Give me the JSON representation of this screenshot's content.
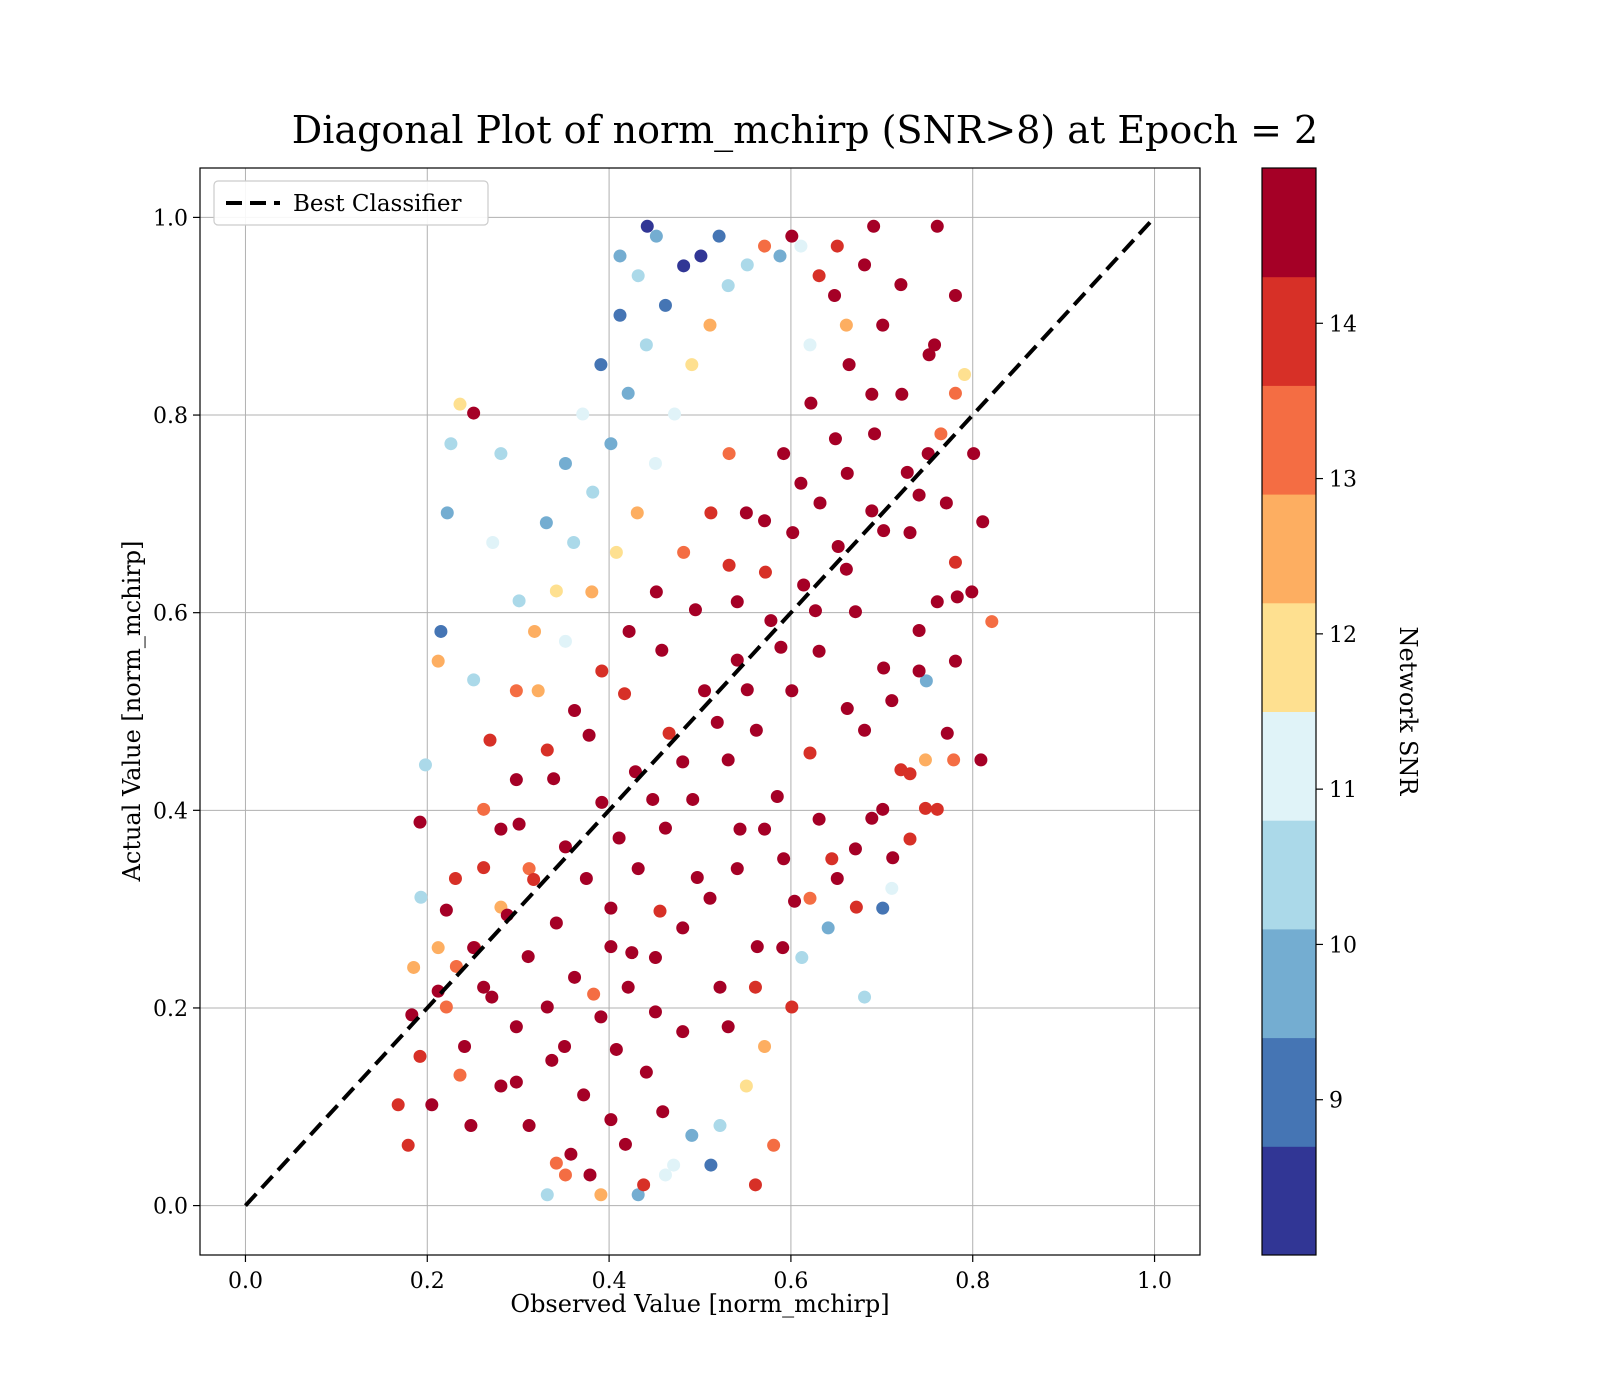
{
  "chart_data": {
    "type": "scatter",
    "title": "Diagonal Plot of norm_mchirp (SNR>8) at Epoch = 2",
    "xlabel": "Observed Value [norm_mchirp]",
    "ylabel": "Actual Value [norm_mchirp]",
    "xlim": [
      -0.05,
      1.05
    ],
    "ylim": [
      -0.05,
      1.05
    ],
    "x_ticks": [
      "0.0",
      "0.2",
      "0.4",
      "0.6",
      "0.8",
      "1.0"
    ],
    "y_ticks": [
      "0.0",
      "0.2",
      "0.4",
      "0.6",
      "0.8",
      "1.0"
    ],
    "grid": true,
    "legend": {
      "placement": "upper-left",
      "entries": [
        {
          "label": "Best Classifier",
          "style": "dashed",
          "color": "#000000"
        }
      ]
    },
    "reference_line": {
      "x": [
        0.0,
        1.0
      ],
      "y": [
        0.0,
        1.0
      ]
    },
    "colorbar": {
      "label": "Network SNR",
      "range": [
        8,
        15
      ],
      "tick_values": [
        9,
        10,
        11,
        12,
        13,
        14
      ],
      "tick_labels": [
        "9",
        "10",
        "11",
        "12",
        "13",
        "14"
      ],
      "colors": [
        "#313695",
        "#4575b4",
        "#74add1",
        "#abd9e9",
        "#e0f3f8",
        "#fee090",
        "#fdae61",
        "#f46d43",
        "#d73027",
        "#a50026"
      ]
    },
    "points": [
      [
        0.183,
        0.193,
        14.77
      ],
      [
        0.212,
        0.217,
        14.63
      ],
      [
        0.251,
        0.261,
        14.83
      ],
      [
        0.288,
        0.294,
        14.93
      ],
      [
        0.317,
        0.33,
        13.73
      ],
      [
        0.352,
        0.363,
        14.54
      ],
      [
        0.392,
        0.408,
        14.69
      ],
      [
        0.429,
        0.439,
        14.91
      ],
      [
        0.466,
        0.478,
        13.66
      ],
      [
        0.505,
        0.521,
        14.76
      ],
      [
        0.541,
        0.552,
        14.54
      ],
      [
        0.578,
        0.592,
        14.86
      ],
      [
        0.614,
        0.628,
        14.58
      ],
      [
        0.652,
        0.667,
        14.98
      ],
      [
        0.689,
        0.703,
        14.82
      ],
      [
        0.728,
        0.742,
        14.41
      ],
      [
        0.765,
        0.781,
        13.51
      ],
      [
        0.248,
        0.081,
        14.81
      ],
      [
        0.298,
        0.125,
        14.63
      ],
      [
        0.337,
        0.147,
        14.34
      ],
      [
        0.383,
        0.214,
        13.23
      ],
      [
        0.425,
        0.256,
        14.98
      ],
      [
        0.456,
        0.298,
        13.64
      ],
      [
        0.497,
        0.332,
        14.61
      ],
      [
        0.544,
        0.381,
        14.87
      ],
      [
        0.585,
        0.414,
        14.71
      ],
      [
        0.621,
        0.458,
        14.19
      ],
      [
        0.662,
        0.503,
        14.58
      ],
      [
        0.702,
        0.544,
        14.84
      ],
      [
        0.741,
        0.582,
        14.65
      ],
      [
        0.783,
        0.616,
        14.93
      ],
      [
        0.221,
        0.299,
        14.76
      ],
      [
        0.262,
        0.342,
        14.12
      ],
      [
        0.301,
        0.386,
        14.59
      ],
      [
        0.339,
        0.432,
        14.43
      ],
      [
        0.378,
        0.476,
        14.37
      ],
      [
        0.417,
        0.518,
        13.91
      ],
      [
        0.458,
        0.562,
        14.97
      ],
      [
        0.495,
        0.603,
        14.88
      ],
      [
        0.532,
        0.648,
        14.26
      ],
      [
        0.571,
        0.693,
        14.61
      ],
      [
        0.611,
        0.731,
        14.74
      ],
      [
        0.649,
        0.776,
        14.93
      ],
      [
        0.689,
        0.821,
        14.79
      ],
      [
        0.358,
        0.052,
        14.71
      ],
      [
        0.402,
        0.087,
        14.82
      ],
      [
        0.441,
        0.135,
        14.41
      ],
      [
        0.481,
        0.176,
        14.96
      ],
      [
        0.522,
        0.221,
        14.63
      ],
      [
        0.563,
        0.262,
        14.54
      ],
      [
        0.604,
        0.308,
        14.88
      ],
      [
        0.645,
        0.351,
        14.19
      ],
      [
        0.689,
        0.392,
        14.77
      ],
      [
        0.731,
        0.437,
        13.61
      ],
      [
        0.772,
        0.478,
        14.35
      ],
      [
        0.192,
        0.151,
        13.94
      ],
      [
        0.205,
        0.102,
        14.69
      ],
      [
        0.236,
        0.132,
        13.31
      ],
      [
        0.271,
        0.211,
        14.84
      ],
      [
        0.311,
        0.252,
        14.62
      ],
      [
        0.342,
        0.286,
        14.75
      ],
      [
        0.375,
        0.331,
        14.98
      ],
      [
        0.411,
        0.372,
        14.67
      ],
      [
        0.448,
        0.411,
        14.39
      ],
      [
        0.481,
        0.449,
        14.86
      ],
      [
        0.519,
        0.489,
        14.72
      ],
      [
        0.552,
        0.522,
        14.59
      ],
      [
        0.589,
        0.565,
        14.51
      ],
      [
        0.627,
        0.602,
        14.94
      ],
      [
        0.661,
        0.644,
        14.78
      ],
      [
        0.702,
        0.683,
        14.81
      ],
      [
        0.741,
        0.719,
        14.66
      ],
      [
        0.312,
        0.081,
        14.49
      ],
      [
        0.342,
        0.043,
        13.36
      ],
      [
        0.379,
        0.031,
        14.92
      ],
      [
        0.418,
        0.062,
        14.55
      ],
      [
        0.438,
        0.021,
        13.88
      ],
      [
        0.459,
        0.095,
        14.71
      ],
      [
        0.372,
        0.112,
        14.39
      ],
      [
        0.408,
        0.158,
        14.83
      ],
      [
        0.451,
        0.196,
        14.59
      ],
      [
        0.551,
        0.701,
        14.88
      ],
      [
        0.592,
        0.761,
        14.93
      ],
      [
        0.622,
        0.812,
        14.71
      ],
      [
        0.664,
        0.851,
        14.36
      ],
      [
        0.701,
        0.891,
        14.81
      ],
      [
        0.648,
        0.921,
        14.57
      ],
      [
        0.681,
        0.952,
        14.68
      ],
      [
        0.721,
        0.932,
        14.87
      ],
      [
        0.758,
        0.871,
        14.51
      ],
      [
        0.781,
        0.822,
        13.45
      ],
      [
        0.592,
        0.351,
        14.66
      ],
      [
        0.631,
        0.391,
        14.82
      ],
      [
        0.672,
        0.302,
        13.79
      ],
      [
        0.712,
        0.352,
        14.35
      ],
      [
        0.748,
        0.402,
        13.91
      ],
      [
        0.781,
        0.551,
        14.63
      ],
      [
        0.799,
        0.621,
        14.91
      ],
      [
        0.811,
        0.692,
        14.31
      ],
      [
        0.269,
        0.471,
        13.61
      ],
      [
        0.298,
        0.521,
        13.22
      ],
      [
        0.318,
        0.581,
        12.63
      ],
      [
        0.342,
        0.622,
        11.69
      ],
      [
        0.361,
        0.671,
        10.62
      ],
      [
        0.382,
        0.722,
        10.21
      ],
      [
        0.402,
        0.771,
        9.51
      ],
      [
        0.421,
        0.822,
        9.83
      ],
      [
        0.441,
        0.871,
        10.41
      ],
      [
        0.462,
        0.911,
        9.05
      ],
      [
        0.482,
        0.951,
        8.53
      ],
      [
        0.301,
        0.612,
        10.31
      ],
      [
        0.331,
        0.691,
        9.42
      ],
      [
        0.352,
        0.751,
        9.86
      ],
      [
        0.371,
        0.801,
        10.93
      ],
      [
        0.391,
        0.851,
        8.71
      ],
      [
        0.412,
        0.901,
        9.31
      ],
      [
        0.432,
        0.941,
        10.72
      ],
      [
        0.452,
        0.981,
        9.62
      ],
      [
        0.322,
        0.521,
        12.28
      ],
      [
        0.352,
        0.571,
        11.42
      ],
      [
        0.381,
        0.621,
        12.87
      ],
      [
        0.408,
        0.661,
        11.91
      ],
      [
        0.431,
        0.701,
        12.45
      ],
      [
        0.451,
        0.751,
        11.23
      ],
      [
        0.472,
        0.801,
        10.85
      ],
      [
        0.491,
        0.851,
        11.61
      ],
      [
        0.511,
        0.891,
        12.31
      ],
      [
        0.531,
        0.931,
        10.27
      ],
      [
        0.501,
        0.961,
        8.41
      ],
      [
        0.521,
        0.981,
        9.21
      ],
      [
        0.552,
        0.952,
        10.61
      ],
      [
        0.571,
        0.971,
        13.42
      ],
      [
        0.601,
        0.981,
        14.79
      ],
      [
        0.442,
        0.991,
        8.62
      ],
      [
        0.412,
        0.961,
        9.71
      ],
      [
        0.222,
        0.701,
        9.83
      ],
      [
        0.226,
        0.771,
        10.63
      ],
      [
        0.215,
        0.581,
        9.31
      ],
      [
        0.236,
        0.811,
        11.53
      ],
      [
        0.272,
        0.671,
        11.12
      ],
      [
        0.251,
        0.532,
        10.41
      ],
      [
        0.212,
        0.551,
        12.71
      ],
      [
        0.281,
        0.761,
        10.21
      ],
      [
        0.198,
        0.446,
        10.21
      ],
      [
        0.193,
        0.312,
        10.63
      ],
      [
        0.185,
        0.241,
        12.45
      ],
      [
        0.168,
        0.102,
        13.61
      ],
      [
        0.179,
        0.061,
        13.92
      ],
      [
        0.192,
        0.388,
        14.82
      ],
      [
        0.432,
        0.011,
        9.61
      ],
      [
        0.462,
        0.031,
        10.81
      ],
      [
        0.512,
        0.041,
        9.31
      ],
      [
        0.522,
        0.081,
        10.51
      ],
      [
        0.551,
        0.121,
        11.71
      ],
      [
        0.571,
        0.161,
        12.81
      ],
      [
        0.601,
        0.201,
        13.61
      ],
      [
        0.612,
        0.251,
        10.31
      ],
      [
        0.641,
        0.281,
        9.71
      ],
      [
        0.581,
        0.061,
        13.21
      ],
      [
        0.561,
        0.021,
        14.21
      ],
      [
        0.352,
        0.031,
        13.31
      ],
      [
        0.332,
        0.011,
        10.61
      ],
      [
        0.391,
        0.011,
        12.81
      ],
      [
        0.471,
        0.041,
        11.21
      ],
      [
        0.491,
        0.071,
        9.91
      ],
      [
        0.681,
        0.211,
        10.41
      ],
      [
        0.701,
        0.301,
        8.71
      ],
      [
        0.711,
        0.321,
        10.81
      ],
      [
        0.731,
        0.371,
        14.21
      ],
      [
        0.761,
        0.401,
        13.61
      ],
      [
        0.748,
        0.451,
        12.21
      ],
      [
        0.779,
        0.451,
        13.21
      ],
      [
        0.749,
        0.531,
        9.61
      ],
      [
        0.809,
        0.451,
        14.71
      ],
      [
        0.821,
        0.591,
        13.11
      ],
      [
        0.801,
        0.761,
        14.81
      ],
      [
        0.791,
        0.841,
        11.61
      ],
      [
        0.781,
        0.921,
        14.41
      ],
      [
        0.761,
        0.991,
        14.31
      ],
      [
        0.691,
        0.991,
        14.61
      ],
      [
        0.651,
        0.971,
        14.01
      ],
      [
        0.251,
        0.802,
        14.91
      ],
      [
        0.611,
        0.971,
        10.81
      ],
      [
        0.588,
        0.961,
        9.51
      ],
      [
        0.631,
        0.941,
        13.61
      ],
      [
        0.661,
        0.891,
        12.31
      ],
      [
        0.621,
        0.871,
        11.41
      ],
      [
        0.252,
        0.261,
        13.81
      ],
      [
        0.281,
        0.302,
        12.71
      ],
      [
        0.312,
        0.341,
        13.41
      ],
      [
        0.232,
        0.242,
        13.11
      ],
      [
        0.262,
        0.221,
        14.51
      ],
      [
        0.298,
        0.181,
        14.91
      ],
      [
        0.332,
        0.201,
        14.31
      ],
      [
        0.362,
        0.231,
        14.71
      ],
      [
        0.402,
        0.262,
        14.61
      ],
      [
        0.402,
        0.301,
        14.96
      ],
      [
        0.432,
        0.341,
        14.88
      ],
      [
        0.462,
        0.382,
        14.92
      ],
      [
        0.492,
        0.411,
        14.79
      ],
      [
        0.531,
        0.451,
        14.86
      ],
      [
        0.562,
        0.481,
        14.97
      ],
      [
        0.601,
        0.521,
        14.91
      ],
      [
        0.631,
        0.561,
        14.83
      ],
      [
        0.671,
        0.601,
        14.77
      ],
      [
        0.541,
        0.611,
        14.66
      ],
      [
        0.572,
        0.641,
        13.81
      ],
      [
        0.602,
        0.681,
        14.42
      ],
      [
        0.632,
        0.711,
        14.89
      ],
      [
        0.662,
        0.741,
        14.94
      ],
      [
        0.692,
        0.781,
        14.61
      ],
      [
        0.722,
        0.821,
        14.32
      ],
      [
        0.752,
        0.861,
        14.77
      ],
      [
        0.298,
        0.431,
        14.67
      ],
      [
        0.332,
        0.461,
        14.13
      ],
      [
        0.362,
        0.501,
        14.59
      ],
      [
        0.392,
        0.541,
        13.72
      ],
      [
        0.422,
        0.581,
        14.86
      ],
      [
        0.452,
        0.621,
        14.51
      ],
      [
        0.482,
        0.661,
        13.45
      ],
      [
        0.512,
        0.701,
        14.26
      ],
      [
        0.532,
        0.761,
        13.52
      ],
      [
        0.281,
        0.121,
        14.81
      ],
      [
        0.241,
        0.161,
        14.63
      ],
      [
        0.221,
        0.201,
        13.33
      ],
      [
        0.212,
        0.261,
        12.71
      ],
      [
        0.231,
        0.331,
        13.83
      ],
      [
        0.262,
        0.401,
        13.31
      ],
      [
        0.281,
        0.381,
        14.91
      ],
      [
        0.351,
        0.161,
        14.72
      ],
      [
        0.391,
        0.191,
        14.94
      ],
      [
        0.421,
        0.221,
        14.85
      ],
      [
        0.451,
        0.251,
        14.78
      ],
      [
        0.481,
        0.281,
        14.91
      ],
      [
        0.511,
        0.311,
        14.63
      ],
      [
        0.541,
        0.341,
        14.89
      ],
      [
        0.571,
        0.381,
        14.71
      ],
      [
        0.531,
        0.181,
        14.51
      ],
      [
        0.561,
        0.221,
        13.92
      ],
      [
        0.591,
        0.261,
        14.61
      ],
      [
        0.621,
        0.311,
        13.41
      ],
      [
        0.651,
        0.331,
        14.39
      ],
      [
        0.671,
        0.361,
        14.82
      ],
      [
        0.701,
        0.401,
        14.49
      ],
      [
        0.721,
        0.441,
        13.81
      ],
      [
        0.681,
        0.481,
        14.91
      ],
      [
        0.711,
        0.511,
        14.63
      ],
      [
        0.741,
        0.541,
        14.42
      ],
      [
        0.761,
        0.611,
        14.86
      ],
      [
        0.781,
        0.651,
        14.21
      ],
      [
        0.771,
        0.711,
        14.71
      ],
      [
        0.751,
        0.761,
        14.61
      ],
      [
        0.731,
        0.681,
        14.95
      ]
    ]
  }
}
